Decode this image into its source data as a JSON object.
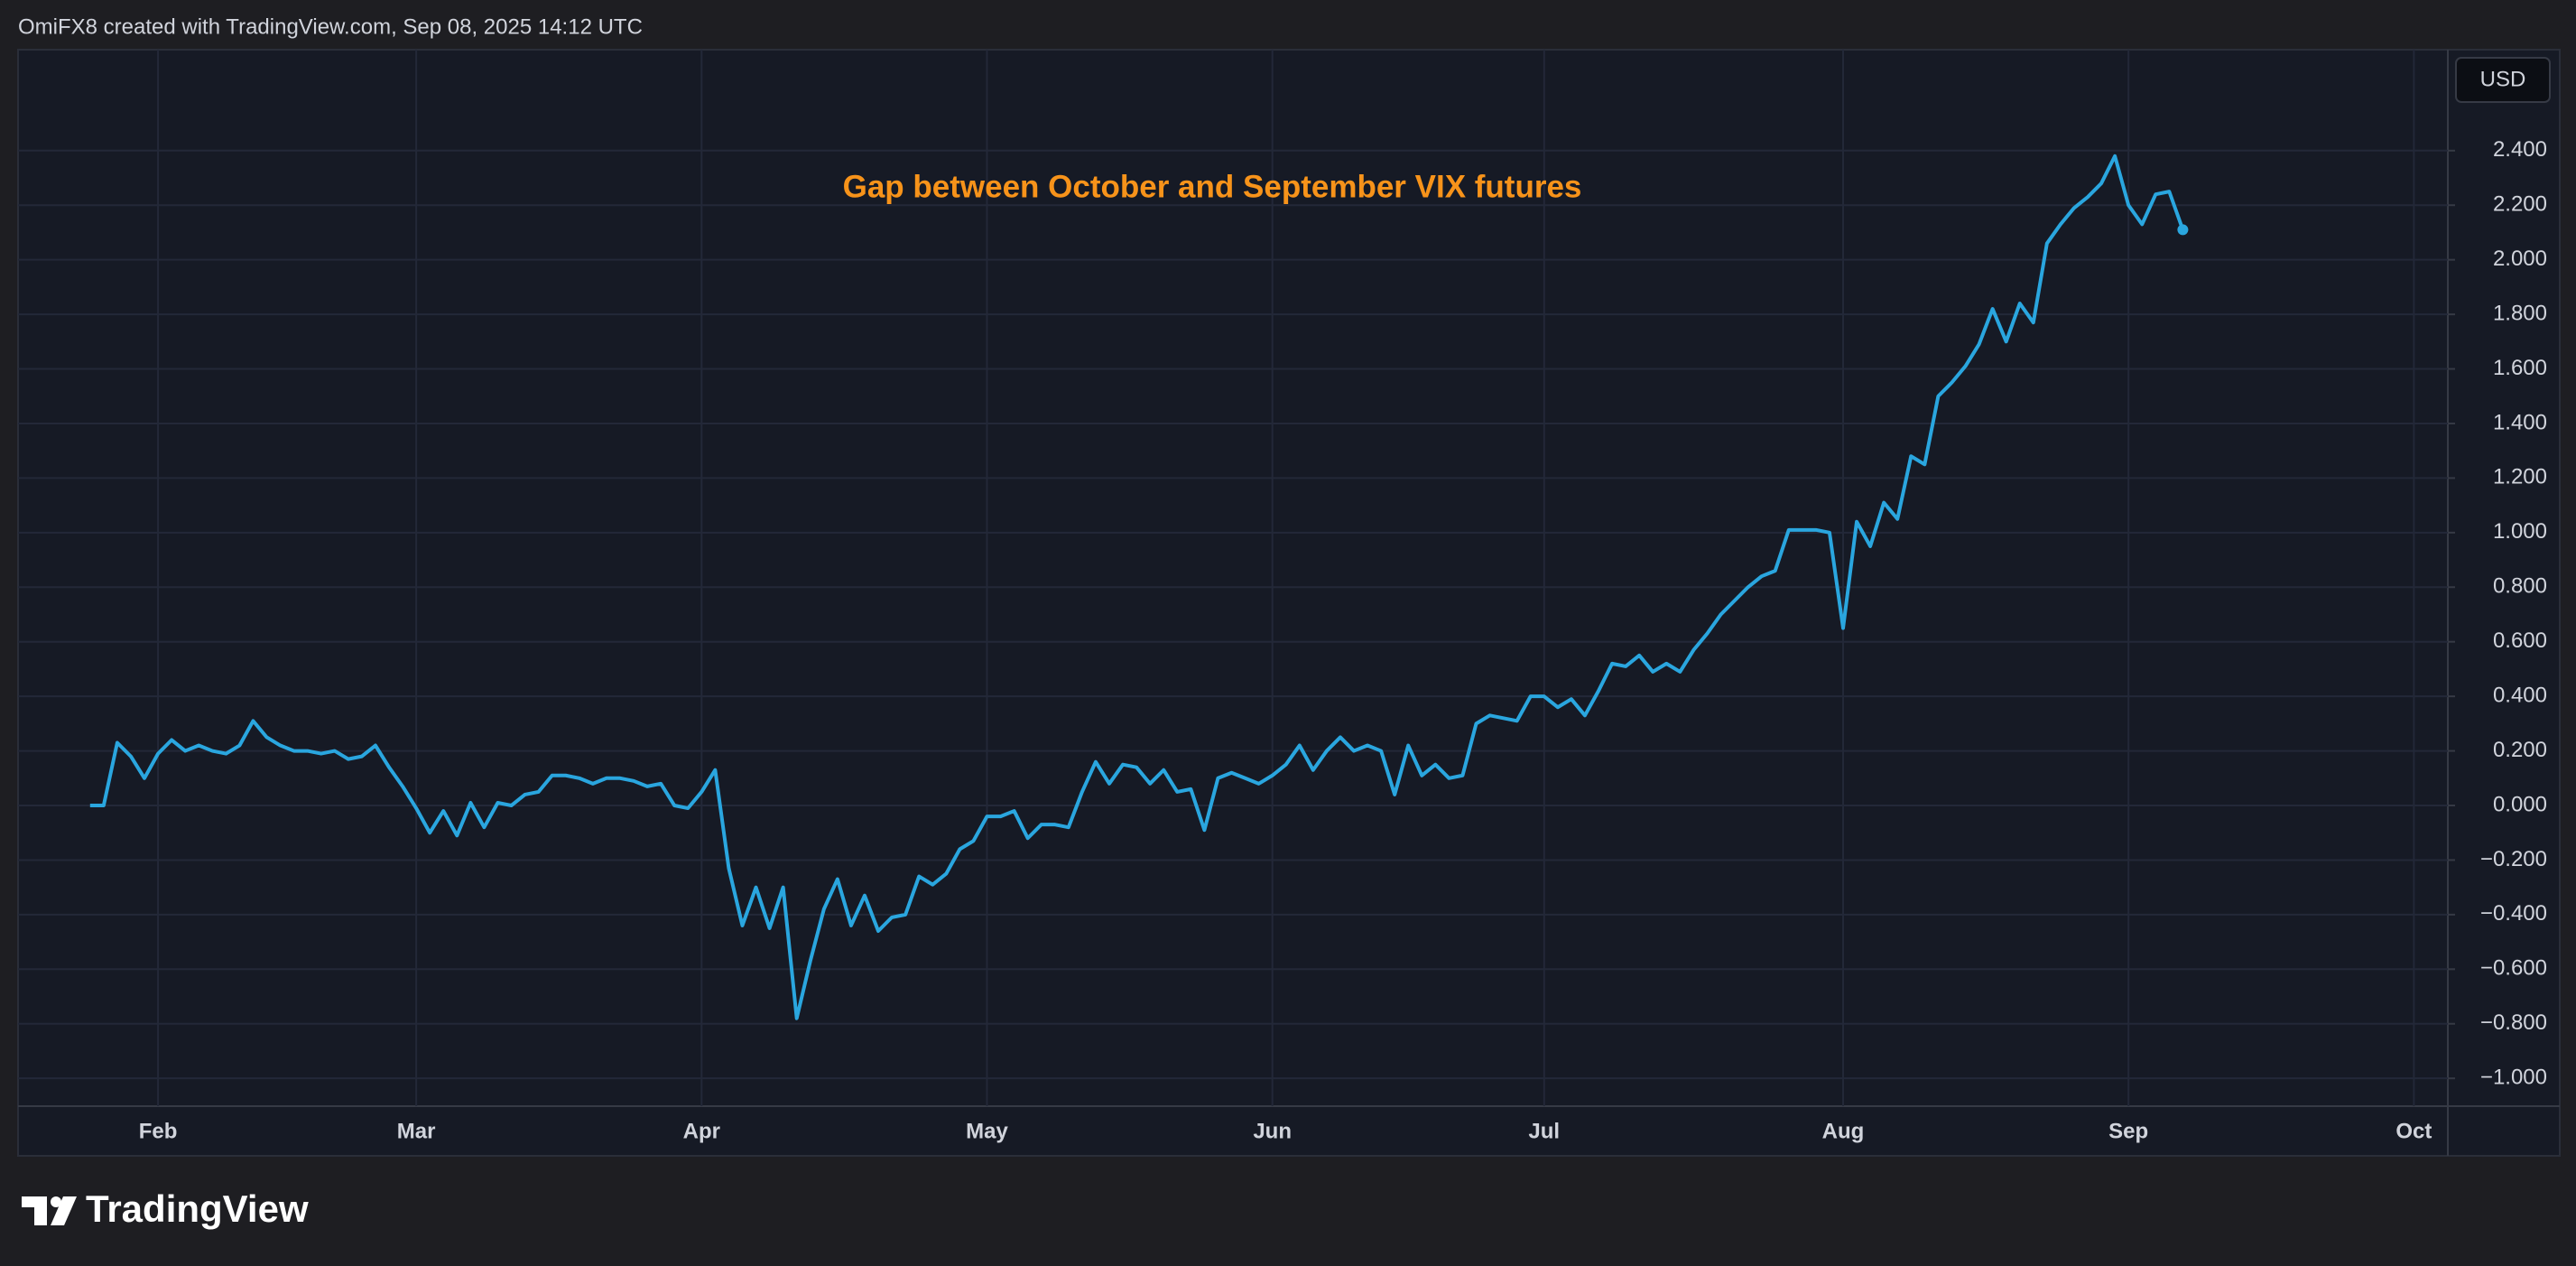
{
  "header": {
    "credit": "OmiFX8 created with TradingView.com, Sep 08, 2025 14:12 UTC"
  },
  "currency_button": "USD",
  "logo": "TradingView",
  "chart_data": {
    "type": "line",
    "annotation": "Gap between October and September VIX futures",
    "series": [
      {
        "color": "#2aa6df",
        "values": [
          0.0,
          0.0,
          0.23,
          0.18,
          0.1,
          0.19,
          0.24,
          0.2,
          0.22,
          0.2,
          0.19,
          0.22,
          0.31,
          0.25,
          0.22,
          0.2,
          0.2,
          0.19,
          0.2,
          0.17,
          0.18,
          0.22,
          0.14,
          0.07,
          -0.01,
          -0.1,
          -0.02,
          -0.11,
          0.01,
          -0.08,
          0.01,
          0.0,
          0.04,
          0.05,
          0.11,
          0.11,
          0.1,
          0.08,
          0.1,
          0.1,
          0.09,
          0.07,
          0.08,
          0.0,
          -0.01,
          0.05,
          0.13,
          -0.23,
          -0.44,
          -0.3,
          -0.45,
          -0.3,
          -0.78,
          -0.57,
          -0.38,
          -0.27,
          -0.44,
          -0.33,
          -0.46,
          -0.41,
          -0.4,
          -0.26,
          -0.29,
          -0.25,
          -0.16,
          -0.13,
          -0.04,
          -0.04,
          -0.02,
          -0.12,
          -0.07,
          -0.07,
          -0.08,
          0.05,
          0.16,
          0.08,
          0.15,
          0.14,
          0.08,
          0.13,
          0.05,
          0.06,
          -0.09,
          0.1,
          0.12,
          0.1,
          0.08,
          0.11,
          0.15,
          0.22,
          0.13,
          0.2,
          0.25,
          0.2,
          0.22,
          0.2,
          0.04,
          0.22,
          0.11,
          0.15,
          0.1,
          0.11,
          0.3,
          0.33,
          0.32,
          0.31,
          0.4,
          0.4,
          0.36,
          0.39,
          0.33,
          0.42,
          0.52,
          0.51,
          0.55,
          0.49,
          0.52,
          0.49,
          0.57,
          0.63,
          0.7,
          0.75,
          0.8,
          0.84,
          0.86,
          1.01,
          1.01,
          1.01,
          1.0,
          0.65,
          1.04,
          0.95,
          1.11,
          1.05,
          1.28,
          1.25,
          1.5,
          1.55,
          1.61,
          1.69,
          1.82,
          1.7,
          1.84,
          1.77,
          2.06,
          2.13,
          2.19,
          2.23,
          2.28,
          2.38,
          2.2,
          2.13,
          2.24,
          2.25,
          2.11
        ]
      }
    ],
    "xlim": [
      -5.3,
      173.5
    ],
    "xticks": [
      {
        "value": 5,
        "label": "Feb"
      },
      {
        "value": 24,
        "label": "Mar"
      },
      {
        "value": 45,
        "label": "Apr"
      },
      {
        "value": 66,
        "label": "May"
      },
      {
        "value": 87,
        "label": "Jun"
      },
      {
        "value": 107,
        "label": "Jul"
      },
      {
        "value": 129,
        "label": "Aug"
      },
      {
        "value": 150,
        "label": "Sep"
      },
      {
        "value": 171,
        "label": "Oct"
      }
    ],
    "ylim": [
      -1.102,
      2.77
    ],
    "yticks": [
      {
        "value": -1.0,
        "label": "−1.000"
      },
      {
        "value": -0.8,
        "label": "−0.800"
      },
      {
        "value": -0.6,
        "label": "−0.600"
      },
      {
        "value": -0.4,
        "label": "−0.400"
      },
      {
        "value": -0.2,
        "label": "−0.200"
      },
      {
        "value": 0.0,
        "label": "0.000"
      },
      {
        "value": 0.2,
        "label": "0.200"
      },
      {
        "value": 0.4,
        "label": "0.400"
      },
      {
        "value": 0.6,
        "label": "0.600"
      },
      {
        "value": 0.8,
        "label": "0.800"
      },
      {
        "value": 1.0,
        "label": "1.000"
      },
      {
        "value": 1.2,
        "label": "1.200"
      },
      {
        "value": 1.4,
        "label": "1.400"
      },
      {
        "value": 1.6,
        "label": "1.600"
      },
      {
        "value": 1.8,
        "label": "1.800"
      },
      {
        "value": 2.0,
        "label": "2.000"
      },
      {
        "value": 2.2,
        "label": "2.200"
      },
      {
        "value": 2.4,
        "label": "2.400"
      }
    ],
    "grid": true
  }
}
